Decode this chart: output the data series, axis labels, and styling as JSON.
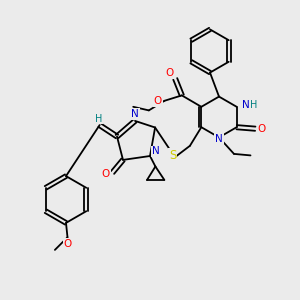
{
  "background_color": "#ebebeb",
  "atom_colors": {
    "C": "#000000",
    "N": "#0000cc",
    "O": "#ff0000",
    "S": "#cccc00",
    "H": "#008080"
  },
  "bond_lw": 1.3,
  "font_size": 7.5
}
